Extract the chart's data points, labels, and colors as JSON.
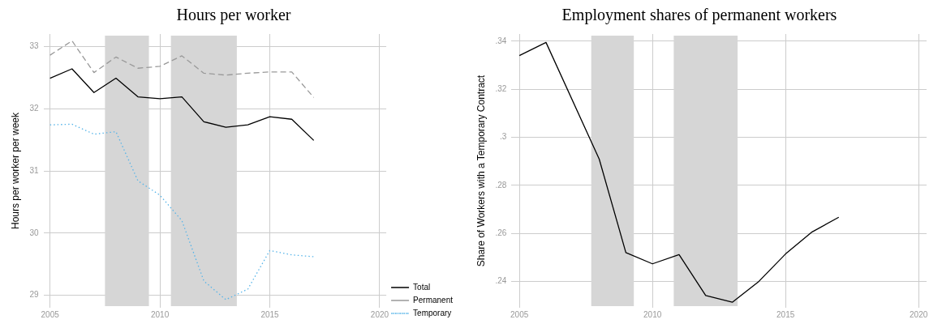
{
  "chart_data": [
    {
      "type": "line",
      "title": "Hours per worker",
      "ylabel": "Hours per worker per week",
      "x": [
        2005,
        2006,
        2007,
        2008,
        2009,
        2010,
        2011,
        2012,
        2013,
        2014,
        2015,
        2016,
        2017
      ],
      "series": [
        {
          "name": "Total",
          "color": "#000000",
          "line_style": "solid",
          "values": [
            32.49,
            32.64,
            32.26,
            32.49,
            32.19,
            32.16,
            32.19,
            31.79,
            31.7,
            31.74,
            31.87,
            31.83,
            31.49
          ]
        },
        {
          "name": "Permanent",
          "color": "#999999",
          "line_style": "dashed",
          "values": [
            32.86,
            33.09,
            32.58,
            32.83,
            32.65,
            32.68,
            32.85,
            32.57,
            32.54,
            32.57,
            32.59,
            32.59,
            32.18
          ]
        },
        {
          "name": "Temporary",
          "color": "#56b4e9",
          "line_style": "dotted",
          "values": [
            31.74,
            31.75,
            31.59,
            31.63,
            30.84,
            30.61,
            30.2,
            29.23,
            28.93,
            29.1,
            29.72,
            29.65,
            29.62
          ]
        }
      ],
      "xlim": [
        2004.7,
        2020.3
      ],
      "xticks": [
        2005,
        2010,
        2015,
        2020
      ],
      "ylim": [
        28.8,
        33.2
      ],
      "yticks": [
        29,
        30,
        31,
        32,
        33
      ],
      "bands": [
        {
          "axis": "x",
          "from": 2007.5,
          "to": 2009.5,
          "color": "#d6d6d6"
        },
        {
          "axis": "x",
          "from": 2010.5,
          "to": 2013.5,
          "color": "#d6d6d6"
        }
      ],
      "grid": true,
      "legend": "right",
      "marker": "none"
    },
    {
      "type": "line",
      "title": "Employment shares of permanent workers",
      "ylabel": "Share of Workers with a Temporary Contract",
      "x": [
        2005,
        2006,
        2008,
        2009,
        2010,
        2011,
        2012,
        2013,
        2014,
        2015,
        2016,
        2017
      ],
      "series": [
        {
          "color": "#000000",
          "values": [
            0.334,
            0.3395,
            0.2909,
            0.252,
            0.2473,
            0.2511,
            0.2341,
            0.2313,
            0.24,
            0.2514,
            0.2606,
            0.2667
          ]
        }
      ],
      "xlim": [
        2004.7,
        2020.3
      ],
      "xticks": [
        2005,
        2010,
        2015,
        2020
      ],
      "ylim": [
        0.229,
        0.343
      ],
      "yticks": [
        {
          "value": 0.24,
          "label": ".24"
        },
        {
          "value": 0.26,
          "label": ".26"
        },
        {
          "value": 0.28,
          "label": ".28"
        },
        {
          "value": 0.3,
          "label": ".3"
        },
        {
          "value": 0.32,
          "label": ".32"
        },
        {
          "value": 0.34,
          "label": ".34"
        }
      ],
      "bands": [
        {
          "axis": "x",
          "from": 2007.7,
          "to": 2009.3,
          "color": "#d6d6d6"
        },
        {
          "axis": "x",
          "from": 2010.8,
          "to": 2013.2,
          "color": "#d6d6d6"
        }
      ],
      "grid": true,
      "legend": false,
      "marker": "none"
    }
  ]
}
